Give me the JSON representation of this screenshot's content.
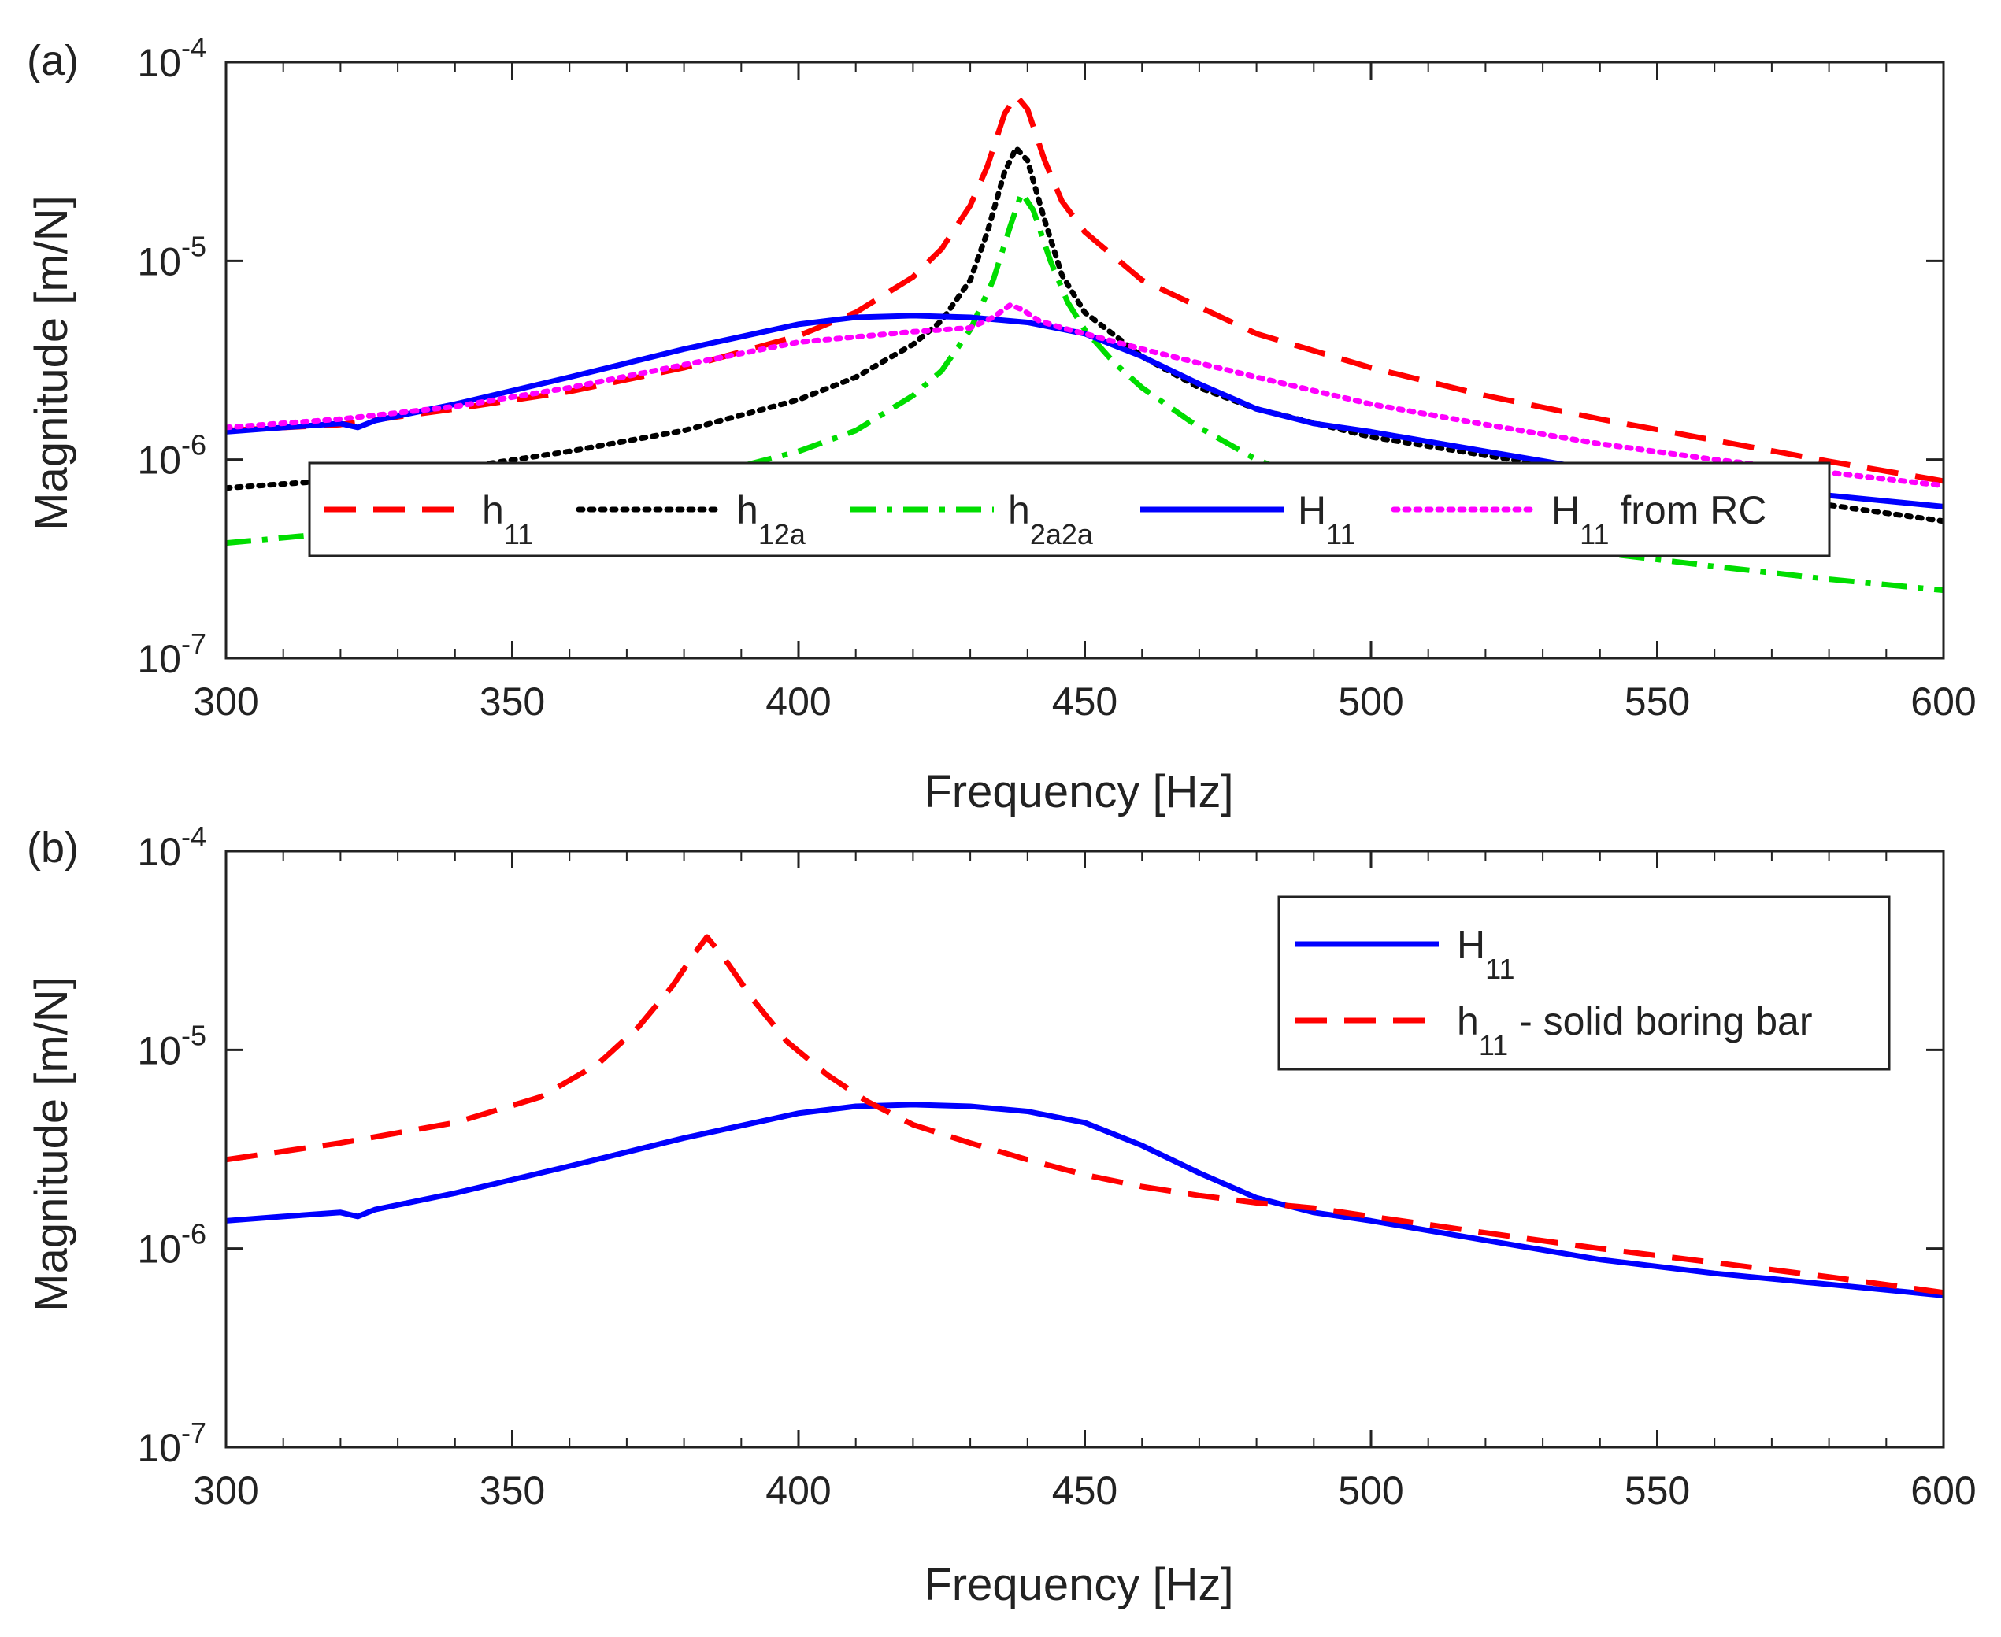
{
  "chart_data": [
    {
      "panel_label": "(a)",
      "type": "line",
      "xlabel": "Frequency [Hz]",
      "ylabel": "Magnitude [m/N]",
      "xlim": [
        300,
        600
      ],
      "ylim": [
        1e-07,
        0.0001
      ],
      "y_scale": "log",
      "x_ticks": [
        "300",
        "350",
        "400",
        "450",
        "500",
        "550",
        "600"
      ],
      "y_ticks": [
        {
          "base": "10",
          "exp": "-7",
          "value": 1e-07
        },
        {
          "base": "10",
          "exp": "-6",
          "value": 1e-06
        },
        {
          "base": "10",
          "exp": "-5",
          "value": 1e-05
        },
        {
          "base": "10",
          "exp": "-4",
          "value": 0.0001
        }
      ],
      "grid": false,
      "legend_placement": "lower-center, single row",
      "series": [
        {
          "name": "h11",
          "name_main": "h",
          "name_sub": "11",
          "name_suffix": "",
          "color": "#ff0000",
          "style": "dashed",
          "x": [
            300,
            320,
            340,
            360,
            380,
            400,
            410,
            420,
            425,
            430,
            433,
            436,
            438,
            440,
            443,
            446,
            450,
            460,
            480,
            500,
            520,
            540,
            560,
            580,
            600
          ],
          "y": [
            1.4e-06,
            1.5e-06,
            1.8e-06,
            2.2e-06,
            2.9e-06,
            4.2e-06,
            5.5e-06,
            8.3e-06,
            1.15e-05,
            1.9e-05,
            3e-05,
            5.5e-05,
            6.8e-05,
            5.8e-05,
            3.2e-05,
            2e-05,
            1.4e-05,
            8e-06,
            4.3e-06,
            2.9e-06,
            2.1e-06,
            1.6e-06,
            1.25e-06,
            9.8e-07,
            7.8e-07
          ]
        },
        {
          "name": "h12a",
          "name_main": "h",
          "name_sub": "12a",
          "name_suffix": "",
          "color": "#000000",
          "style": "dotted",
          "x": [
            300,
            320,
            340,
            360,
            380,
            400,
            410,
            420,
            425,
            430,
            433,
            436,
            438,
            440,
            443,
            446,
            450,
            460,
            470,
            480,
            500,
            520,
            540,
            560,
            580,
            600
          ],
          "y": [
            7.2e-07,
            7.9e-07,
            9e-07,
            1.1e-06,
            1.4e-06,
            2e-06,
            2.6e-06,
            3.8e-06,
            5e-06,
            8e-06,
            1.4e-05,
            2.8e-05,
            3.7e-05,
            3.2e-05,
            1.6e-05,
            8.5e-06,
            5.5e-06,
            3.3e-06,
            2.3e-06,
            1.8e-06,
            1.3e-06,
            1.05e-06,
            8.5e-07,
            7e-07,
            5.9e-07,
            4.9e-07
          ]
        },
        {
          "name": "h2a2a",
          "name_main": "h",
          "name_sub": "2a2a",
          "name_suffix": "",
          "color": "#00dd00",
          "style": "dashdot",
          "x": [
            300,
            320,
            340,
            360,
            380,
            400,
            410,
            420,
            425,
            430,
            434,
            437,
            439,
            441,
            444,
            447,
            450,
            455,
            460,
            470,
            480,
            500,
            520,
            540,
            560,
            580,
            600
          ],
          "y": [
            3.8e-07,
            4.3e-07,
            5e-07,
            6.1e-07,
            7.8e-07,
            1.1e-06,
            1.4e-06,
            2.1e-06,
            2.8e-06,
            4.5e-06,
            8e-06,
            1.5e-05,
            2.2e-05,
            1.8e-05,
            1e-05,
            6.2e-06,
            4.5e-06,
            3.1e-06,
            2.3e-06,
            1.45e-06,
            1e-06,
            6e-07,
            4.3e-07,
            3.4e-07,
            2.9e-07,
            2.5e-07,
            2.2e-07
          ]
        },
        {
          "name": "H11",
          "name_main": "H",
          "name_sub": "11",
          "name_suffix": "",
          "color": "#0000ff",
          "style": "solid",
          "x": [
            300,
            310,
            320,
            323,
            326,
            340,
            360,
            380,
            400,
            410,
            420,
            430,
            440,
            450,
            460,
            470,
            480,
            490,
            500,
            520,
            540,
            560,
            580,
            600
          ],
          "y": [
            1.38e-06,
            1.45e-06,
            1.52e-06,
            1.45e-06,
            1.57e-06,
            1.9e-06,
            2.6e-06,
            3.6e-06,
            4.8e-06,
            5.2e-06,
            5.3e-06,
            5.2e-06,
            4.9e-06,
            4.3e-06,
            3.3e-06,
            2.4e-06,
            1.8e-06,
            1.52e-06,
            1.38e-06,
            1.1e-06,
            8.8e-07,
            7.5e-07,
            6.6e-07,
            5.8e-07
          ]
        },
        {
          "name": "H11 from RC",
          "name_main": "H",
          "name_sub": "11",
          "name_suffix": " from RC",
          "color": "#ff00ff",
          "style": "dotted",
          "x": [
            300,
            320,
            340,
            360,
            380,
            400,
            420,
            430,
            434,
            437,
            439,
            442,
            446,
            450,
            460,
            480,
            500,
            520,
            540,
            560,
            580,
            600
          ],
          "y": [
            1.45e-06,
            1.6e-06,
            1.85e-06,
            2.3e-06,
            3e-06,
            3.9e-06,
            4.4e-06,
            4.6e-06,
            5.2e-06,
            6e-06,
            5.7e-06,
            5e-06,
            4.6e-06,
            4.3e-06,
            3.6e-06,
            2.6e-06,
            1.9e-06,
            1.5e-06,
            1.2e-06,
            1e-06,
            8.6e-07,
            7.4e-07
          ]
        }
      ]
    },
    {
      "panel_label": "(b)",
      "type": "line",
      "xlabel": "Frequency [Hz]",
      "ylabel": "Magnitude [m/N]",
      "xlim": [
        300,
        600
      ],
      "ylim": [
        1e-07,
        0.0001
      ],
      "y_scale": "log",
      "x_ticks": [
        "300",
        "350",
        "400",
        "450",
        "500",
        "550",
        "600"
      ],
      "y_ticks": [
        {
          "base": "10",
          "exp": "-7",
          "value": 1e-07
        },
        {
          "base": "10",
          "exp": "-6",
          "value": 1e-06
        },
        {
          "base": "10",
          "exp": "-5",
          "value": 1e-05
        },
        {
          "base": "10",
          "exp": "-4",
          "value": 0.0001
        }
      ],
      "grid": false,
      "legend_placement": "top-right",
      "series": [
        {
          "name": "H11",
          "name_main": "H",
          "name_sub": "11",
          "name_suffix": "",
          "color": "#0000ff",
          "style": "solid",
          "x": [
            300,
            310,
            320,
            323,
            326,
            340,
            360,
            380,
            400,
            410,
            420,
            430,
            440,
            450,
            460,
            470,
            480,
            490,
            500,
            520,
            540,
            560,
            580,
            600
          ],
          "y": [
            1.38e-06,
            1.45e-06,
            1.52e-06,
            1.45e-06,
            1.57e-06,
            1.9e-06,
            2.6e-06,
            3.6e-06,
            4.8e-06,
            5.2e-06,
            5.3e-06,
            5.2e-06,
            4.9e-06,
            4.3e-06,
            3.3e-06,
            2.4e-06,
            1.8e-06,
            1.52e-06,
            1.38e-06,
            1.1e-06,
            8.8e-07,
            7.5e-07,
            6.6e-07,
            5.8e-07
          ]
        },
        {
          "name": "h11 - solid boring bar",
          "name_main": "h",
          "name_sub": "11",
          "name_suffix": " - solid boring bar",
          "color": "#ff0000",
          "style": "dashed",
          "x": [
            300,
            320,
            340,
            355,
            365,
            372,
            378,
            382,
            384,
            387,
            392,
            398,
            405,
            412,
            420,
            430,
            440,
            450,
            460,
            470,
            480,
            490,
            500,
            520,
            540,
            560,
            580,
            600
          ],
          "y": [
            2.8e-06,
            3.4e-06,
            4.3e-06,
            5.8e-06,
            8.5e-06,
            1.3e-05,
            2.1e-05,
            3.1e-05,
            3.7e-05,
            2.9e-05,
            1.8e-05,
            1.1e-05,
            7.5e-06,
            5.5e-06,
            4.2e-06,
            3.4e-06,
            2.8e-06,
            2.35e-06,
            2.05e-06,
            1.85e-06,
            1.7e-06,
            1.6e-06,
            1.45e-06,
            1.2e-06,
            1e-06,
            8.5e-07,
            7.2e-07,
            6e-07
          ]
        }
      ]
    }
  ]
}
